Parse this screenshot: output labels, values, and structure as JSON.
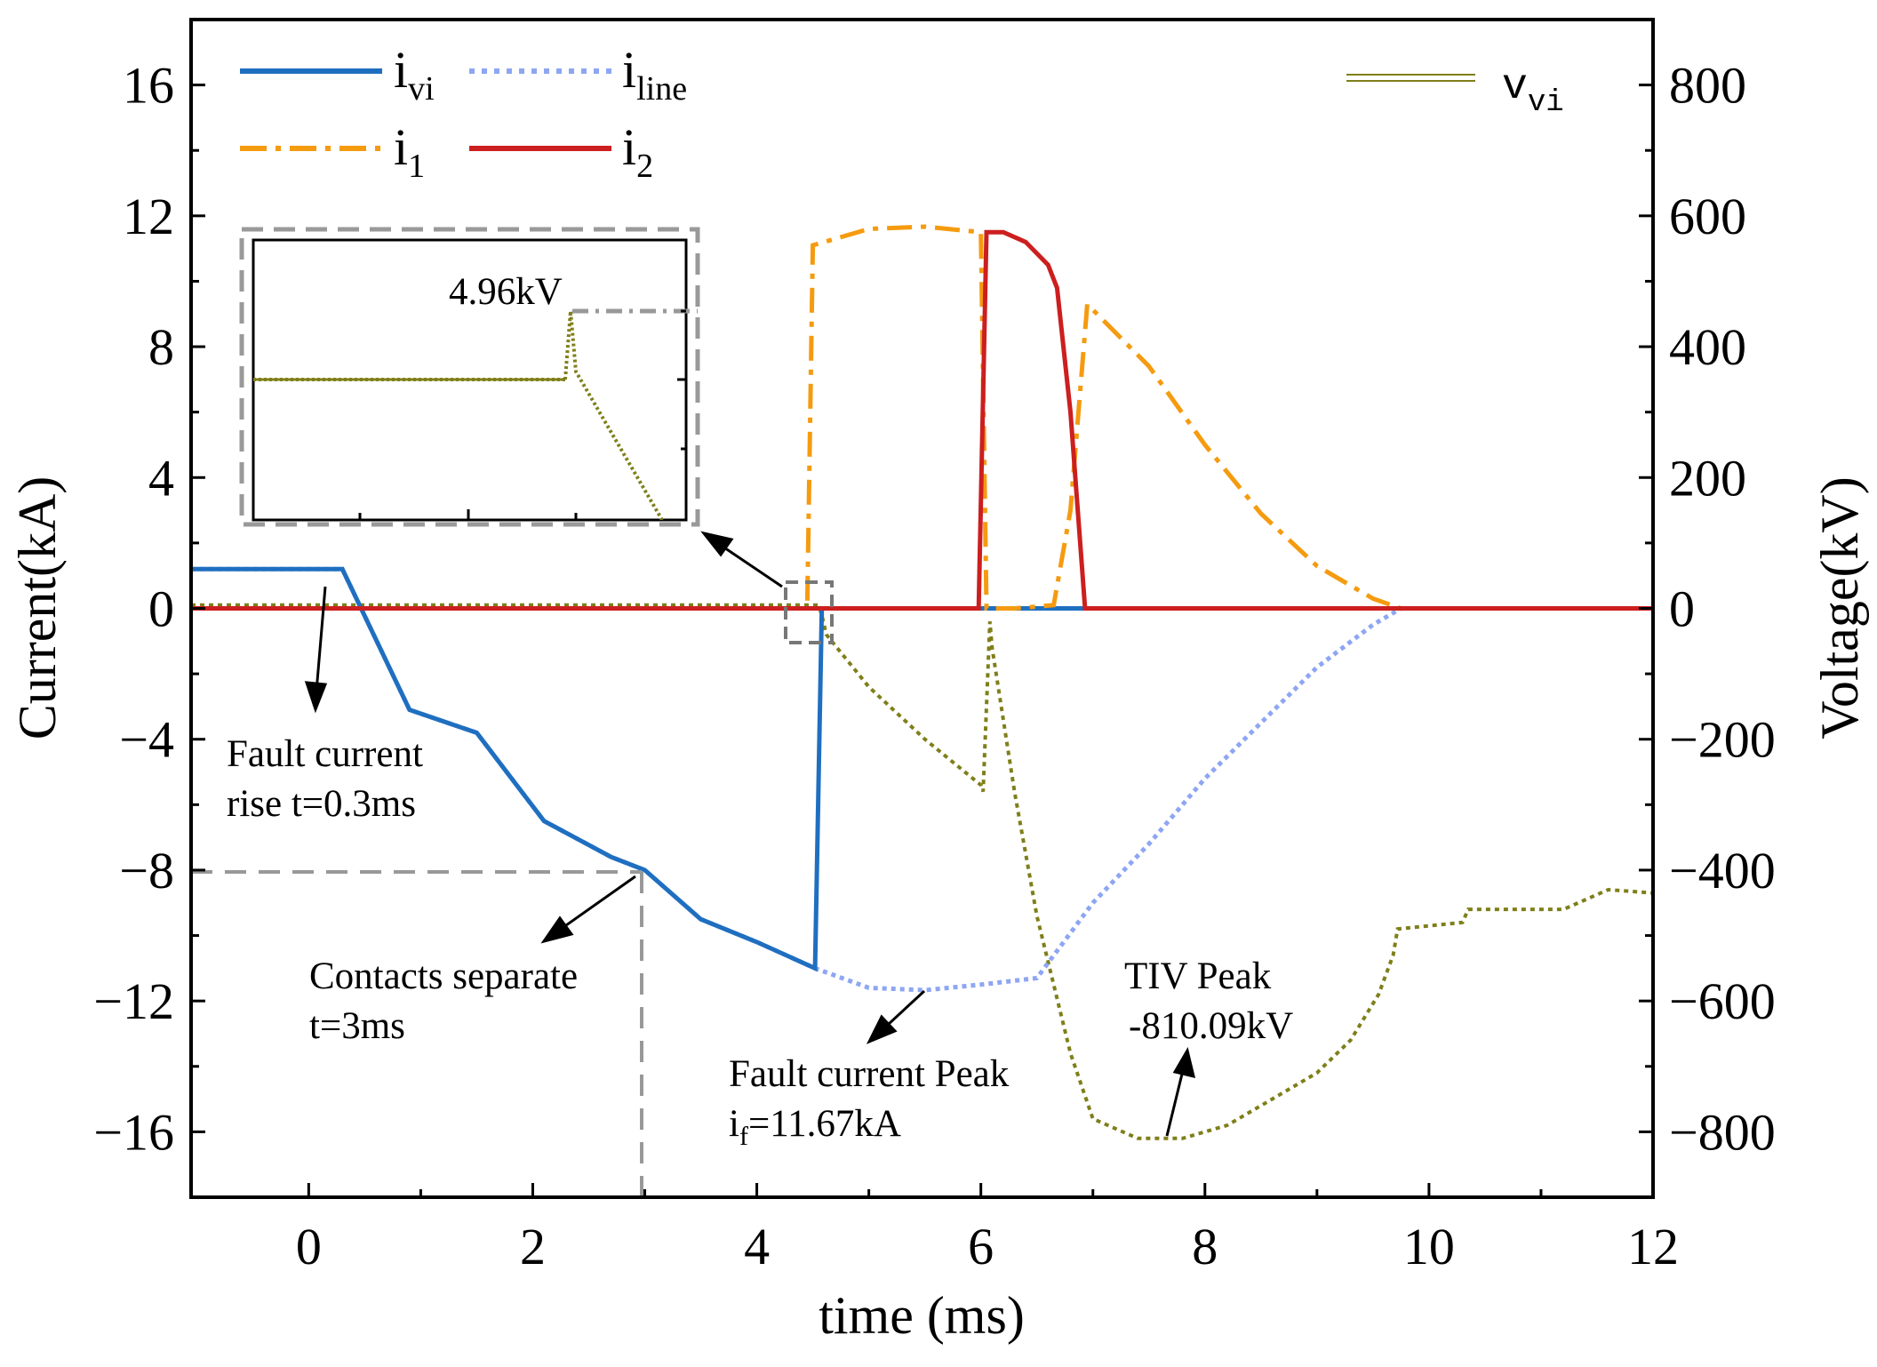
{
  "chart_data": {
    "type": "line",
    "xlabel": "time (ms)",
    "ylabel_left": "Current(kA)",
    "ylabel_right": "Voltage(kV)",
    "xlim": [
      -1.05,
      12
    ],
    "ylim_left": [
      -18,
      18
    ],
    "ylim_right": [
      -900,
      900
    ],
    "xticks": [
      0,
      2,
      4,
      6,
      8,
      10,
      12
    ],
    "yticks_left": [
      16,
      12,
      8,
      4,
      0,
      -4,
      -8,
      -12,
      -16
    ],
    "yticks_right": [
      800,
      600,
      400,
      200,
      0,
      -200,
      -400,
      -600,
      -800
    ],
    "xtick_labels": [
      "0",
      "2",
      "4",
      "6",
      "8",
      "10",
      "12"
    ],
    "ytick_labels_left": [
      "16",
      "12",
      "8",
      "4",
      "0",
      "−4",
      "−8",
      "−12",
      "−16"
    ],
    "ytick_labels_right": [
      "800",
      "600",
      "400",
      "200",
      "0",
      "−200",
      "−400",
      "−600",
      "−800"
    ],
    "grid": false,
    "series": [
      {
        "name": "ivi",
        "color": "#1f6fc0",
        "style": "solid",
        "axis": "left",
        "x": [
          -1.05,
          0.3,
          0.9,
          1.5,
          2.1,
          2.7,
          3.0,
          3.5,
          4.0,
          4.52,
          4.58,
          4.62,
          6.0,
          6.9,
          12
        ],
        "y": [
          1.2,
          1.2,
          -3.1,
          -3.8,
          -6.5,
          -7.6,
          -8.0,
          -9.5,
          -10.2,
          -11.0,
          0,
          0,
          0,
          0,
          0
        ]
      },
      {
        "name": "iline",
        "color": "#8ea6f2",
        "style": "dotted",
        "axis": "left",
        "x": [
          -1.05,
          0.3,
          0.9,
          1.5,
          2.1,
          2.7,
          3.0,
          3.5,
          4.0,
          4.52,
          5.0,
          5.5,
          6.0,
          6.5,
          7.0,
          7.5,
          8.0,
          8.5,
          9.0,
          9.5,
          9.75,
          12
        ],
        "y": [
          1.2,
          1.2,
          -3.1,
          -3.8,
          -6.5,
          -7.6,
          -8.0,
          -9.5,
          -10.2,
          -11.0,
          -11.6,
          -11.67,
          -11.5,
          -11.3,
          -9.0,
          -7.2,
          -5.2,
          -3.5,
          -1.8,
          -0.5,
          0,
          0
        ]
      },
      {
        "name": "i1",
        "color": "#f59b10",
        "style": "dashdot",
        "axis": "left",
        "x": [
          -1.05,
          4.45,
          4.5,
          5.0,
          5.5,
          6.0,
          6.05,
          6.3,
          6.65,
          6.8,
          6.95,
          7.5,
          8.0,
          8.5,
          9.0,
          9.5,
          9.75,
          12
        ],
        "y": [
          0,
          0,
          11.1,
          11.6,
          11.67,
          11.5,
          0,
          0,
          0.1,
          3.0,
          9.3,
          7.4,
          5.0,
          2.9,
          1.3,
          0.3,
          0,
          0
        ]
      },
      {
        "name": "i2",
        "color": "#cc1f1f",
        "style": "solid",
        "axis": "left",
        "x": [
          -1.05,
          5.98,
          6.05,
          6.2,
          6.4,
          6.6,
          6.68,
          6.8,
          6.93,
          12
        ],
        "y": [
          0,
          0,
          11.5,
          11.5,
          11.2,
          10.5,
          9.8,
          6.0,
          0,
          0
        ]
      },
      {
        "name": "vvi",
        "color": "#7f7f1a",
        "style": "dotted",
        "axis": "right",
        "x": [
          -1.05,
          4.55,
          4.58,
          4.62,
          5.0,
          5.5,
          6.0,
          6.02,
          6.08,
          6.1,
          6.3,
          6.5,
          6.8,
          7.0,
          7.4,
          7.8,
          8.2,
          8.6,
          9.0,
          9.3,
          9.55,
          9.68,
          9.72,
          10.3,
          10.35,
          11.2,
          11.6,
          12
        ],
        "y": [
          4.96,
          4.96,
          -10,
          -40,
          -120,
          -200,
          -270,
          -280,
          -20,
          -60,
          -280,
          -470,
          -680,
          -780,
          -810.09,
          -810,
          -790,
          -750,
          -710,
          -660,
          -590,
          -530,
          -490,
          -480,
          -460,
          -460,
          -430,
          -435
        ]
      }
    ],
    "legend": [
      {
        "base": "i",
        "sub": "vi"
      },
      {
        "base": "i",
        "sub": "line"
      },
      {
        "base": "i",
        "sub": "1"
      },
      {
        "base": "i",
        "sub": "2"
      }
    ],
    "legend_v": {
      "base": "v",
      "sub": "vi"
    },
    "annotations": {
      "fault_rise_1": "Fault current",
      "fault_rise_2": "rise t=0.3ms",
      "contacts_1": "Contacts separate",
      "contacts_2": "t=3ms",
      "peak_1": "Fault current Peak",
      "peak_2_base": "i",
      "peak_2_sub": "f",
      "peak_2_rest": "=11.67kA",
      "tiv_1": "TIV Peak",
      "tiv_2": "-810.09kV",
      "inset_label": "4.96kV"
    }
  }
}
